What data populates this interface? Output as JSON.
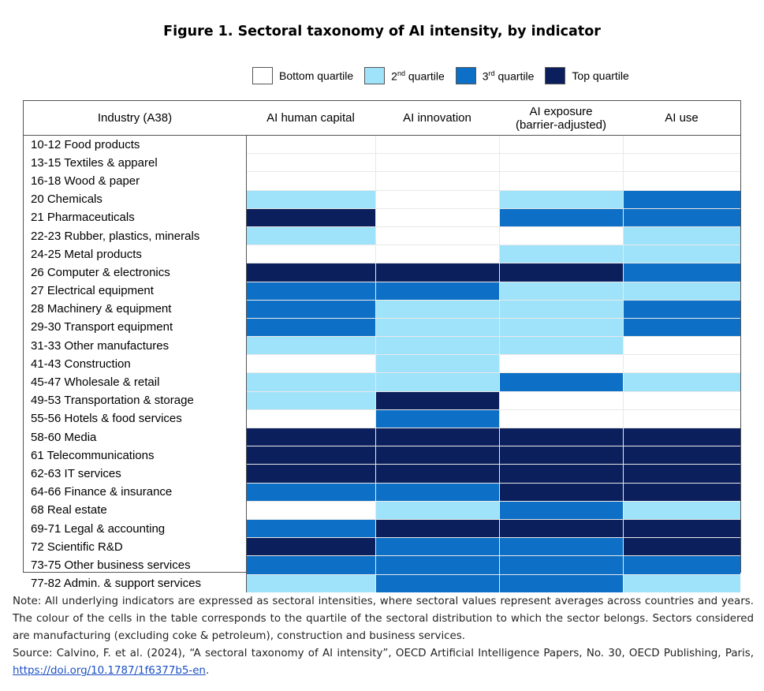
{
  "title": "Figure 1. Sectoral taxonomy of AI intensity, by indicator",
  "legend": [
    {
      "label": "Bottom quartile",
      "color": "#ffffff",
      "sup": ""
    },
    {
      "label": "2",
      "sup": "nd",
      "suffix": " quartile",
      "color": "#9fe3fa"
    },
    {
      "label": "3",
      "sup": "rd",
      "suffix": " quartile",
      "color": "#0d6fc5"
    },
    {
      "label": "Top quartile",
      "sup": "",
      "color": "#0b1f5c"
    }
  ],
  "colors": {
    "q1": "#ffffff",
    "q2": "#9fe3fa",
    "q3": "#0d6fc5",
    "q4": "#0b1f5c",
    "border": "#555555"
  },
  "table": {
    "header_industry": "Industry (A38)",
    "headers": [
      "AI human capital",
      "AI innovation",
      "AI exposure\n(barrier-adjusted)",
      "AI use"
    ]
  },
  "chart_data": {
    "type": "table",
    "title": "Figure 1. Sectoral taxonomy of AI intensity, by indicator",
    "legend": [
      "Bottom quartile",
      "2nd quartile",
      "3rd quartile",
      "Top quartile"
    ],
    "columns": [
      "AI human capital",
      "AI innovation",
      "AI exposure (barrier-adjusted)",
      "AI use"
    ],
    "quartile_scale": "1 = Bottom quartile, 2 = 2nd quartile, 3 = 3rd quartile, 4 = Top quartile",
    "rows": [
      {
        "industry": "10-12 Food products",
        "values": [
          1,
          1,
          1,
          1
        ]
      },
      {
        "industry": "13-15 Textiles & apparel",
        "values": [
          1,
          1,
          1,
          1
        ]
      },
      {
        "industry": "16-18 Wood & paper",
        "values": [
          1,
          1,
          1,
          1
        ]
      },
      {
        "industry": "20 Chemicals",
        "values": [
          2,
          1,
          2,
          3
        ]
      },
      {
        "industry": "21 Pharmaceuticals",
        "values": [
          4,
          1,
          3,
          3
        ]
      },
      {
        "industry": "22-23 Rubber, plastics, minerals",
        "values": [
          2,
          1,
          1,
          2
        ]
      },
      {
        "industry": "24-25 Metal products",
        "values": [
          1,
          1,
          2,
          2
        ]
      },
      {
        "industry": "26 Computer & electronics",
        "values": [
          4,
          4,
          4,
          3
        ]
      },
      {
        "industry": "27 Electrical equipment",
        "values": [
          3,
          3,
          2,
          2
        ]
      },
      {
        "industry": "28 Machinery & equipment",
        "values": [
          3,
          2,
          2,
          3
        ]
      },
      {
        "industry": "29-30 Transport equipment",
        "values": [
          3,
          2,
          2,
          3
        ]
      },
      {
        "industry": "31-33 Other manufactures",
        "values": [
          2,
          2,
          2,
          1
        ]
      },
      {
        "industry": "41-43 Construction",
        "values": [
          1,
          2,
          1,
          1
        ]
      },
      {
        "industry": "45-47 Wholesale & retail",
        "values": [
          2,
          2,
          3,
          2
        ]
      },
      {
        "industry": "49-53 Transportation & storage",
        "values": [
          2,
          4,
          1,
          1
        ]
      },
      {
        "industry": "55-56 Hotels & food services",
        "values": [
          1,
          3,
          1,
          1
        ]
      },
      {
        "industry": "58-60 Media",
        "values": [
          4,
          4,
          4,
          4
        ]
      },
      {
        "industry": "61 Telecommunications",
        "values": [
          4,
          4,
          4,
          4
        ]
      },
      {
        "industry": "62-63 IT services",
        "values": [
          4,
          4,
          4,
          4
        ]
      },
      {
        "industry": "64-66 Finance & insurance",
        "values": [
          3,
          3,
          4,
          4
        ]
      },
      {
        "industry": "68 Real estate",
        "values": [
          1,
          2,
          3,
          2
        ]
      },
      {
        "industry": "69-71 Legal & accounting",
        "values": [
          3,
          4,
          4,
          4
        ]
      },
      {
        "industry": "72 Scientific R&D",
        "values": [
          4,
          3,
          3,
          4
        ]
      },
      {
        "industry": "73-75 Other business services",
        "values": [
          3,
          3,
          3,
          3
        ]
      },
      {
        "industry": "77-82 Admin. & support services",
        "values": [
          2,
          3,
          3,
          2
        ]
      }
    ]
  },
  "note": {
    "text": "Note: All underlying indicators are expressed as sectoral intensities, where sectoral values represent averages across countries and years. The colour of the cells in the table corresponds to the quartile of the sectoral distribution to which the sector belongs. Sectors considered are manufacturing (excluding coke & petroleum), construction and business services.",
    "source_prefix": "Source: Calvino, F. et al. (2024), “A sectoral taxonomy of AI intensity”, OECD Artificial Intelligence Papers, No. 30, OECD Publishing, Paris, ",
    "source_link": "https://doi.org/10.1787/1f6377b5-en",
    "source_suffix": "."
  }
}
